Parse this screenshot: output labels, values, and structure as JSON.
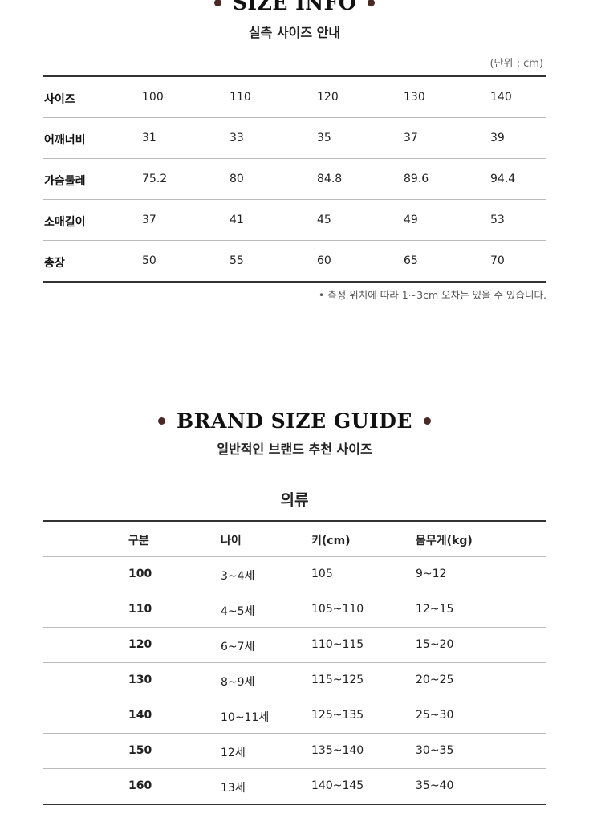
{
  "size_info": {
    "title": "SIZE INFO",
    "subtitle": "실측 사이즈 안내",
    "unit": "(단위 : cm)",
    "rows": [
      {
        "label": "사이즈",
        "values": [
          "100",
          "110",
          "120",
          "130",
          "140"
        ]
      },
      {
        "label": "어깨너비",
        "values": [
          "31",
          "33",
          "35",
          "37",
          "39"
        ]
      },
      {
        "label": "가슴둘레",
        "values": [
          "75.2",
          "80",
          "84.8",
          "89.6",
          "94.4"
        ]
      },
      {
        "label": "소매길이",
        "values": [
          "37",
          "41",
          "45",
          "49",
          "53"
        ]
      },
      {
        "label": "총장",
        "values": [
          "50",
          "55",
          "60",
          "65",
          "70"
        ]
      }
    ],
    "note": "• 측정 위치에 따라 1~3cm 오차는 있을 수 있습니다."
  },
  "brand_guide": {
    "title": "BRAND SIZE GUIDE",
    "subtitle": "일반적인 브랜드 추천 사이즈",
    "category": "의류",
    "headers": [
      "구분",
      "나이",
      "키(cm)",
      "몸무게(kg)"
    ],
    "rows": [
      [
        "100",
        "3~4세",
        "105",
        "9~12"
      ],
      [
        "110",
        "4~5세",
        "105~110",
        "12~15"
      ],
      [
        "120",
        "6~7세",
        "110~115",
        "15~20"
      ],
      [
        "130",
        "8~9세",
        "115~125",
        "20~25"
      ],
      [
        "140",
        "10~11세",
        "125~135",
        "25~30"
      ],
      [
        "150",
        "12세",
        "135~140",
        "30~35"
      ],
      [
        "160",
        "13세",
        "140~145",
        "35~40"
      ]
    ]
  },
  "colors": {
    "accent_dot": "#4a2a26"
  }
}
